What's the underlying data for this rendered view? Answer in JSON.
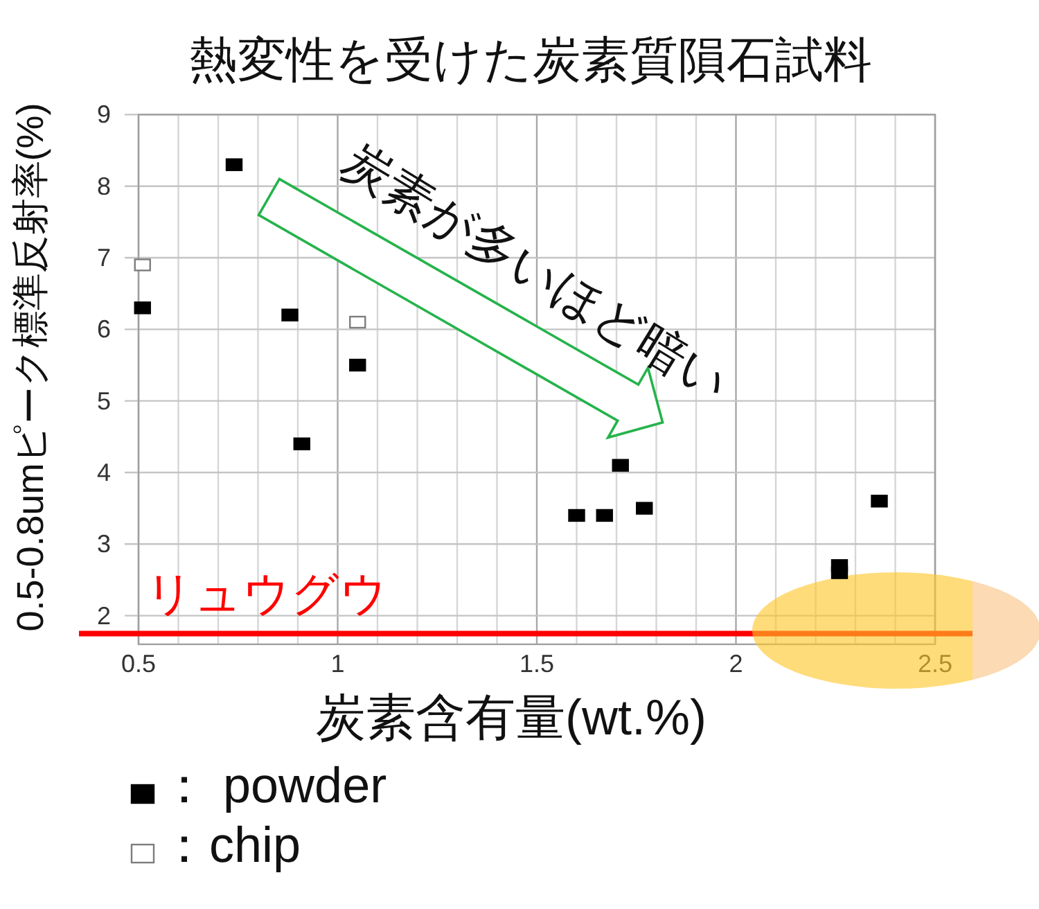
{
  "chart_data": {
    "type": "scatter",
    "title": "熱変性を受けた炭素質隕石試料",
    "xlabel": "炭素含有量(wt.%)",
    "ylabel": "0.5-0.8umピーク標準反射率(%)",
    "series": [
      {
        "name": "： powder",
        "color": "#000000",
        "x": [
          0.51,
          0.74,
          0.88,
          0.91,
          1.05,
          1.6,
          1.67,
          1.71,
          1.77,
          2.26,
          2.26,
          2.36
        ],
        "values": [
          6.3,
          8.3,
          6.2,
          4.4,
          5.5,
          3.4,
          3.4,
          4.1,
          3.5,
          2.7,
          2.6,
          3.6
        ]
      },
      {
        "name": "：chip",
        "color": "#ffffff",
        "x": [
          0.51,
          1.05
        ],
        "values": [
          6.9,
          6.1
        ]
      }
    ],
    "xlim": [
      0.5,
      2.5
    ],
    "xticks": [
      0.5,
      {
        "value": 0.6,
        "label": null
      },
      {
        "value": 0.7,
        "label": null
      },
      {
        "value": 0.8,
        "label": null
      },
      {
        "value": 0.9,
        "label": null
      },
      1,
      {
        "value": 1.1,
        "label": null
      },
      {
        "value": 1.2,
        "label": null
      },
      {
        "value": 1.3,
        "label": null
      },
      {
        "value": 1.4,
        "label": null
      },
      1.5,
      {
        "value": 1.6,
        "label": null
      },
      {
        "value": 1.7,
        "label": null
      },
      {
        "value": 1.8,
        "label": null
      },
      {
        "value": 1.9,
        "label": null
      },
      2,
      {
        "value": 2.1,
        "label": null
      },
      {
        "value": 2.2,
        "label": null
      },
      {
        "value": 2.3,
        "label": null
      },
      {
        "value": 2.4,
        "label": null
      },
      2.5
    ],
    "ylim": [
      1.6,
      9
    ],
    "yticks": [
      2,
      3,
      4,
      5,
      6,
      7,
      8,
      9
    ],
    "grid": true,
    "marker": "square",
    "legend": "bottom left",
    "ref_lines": [
      {
        "axis": "y",
        "value": 1.75,
        "label": "リュウグウ",
        "color": "#ff0000"
      }
    ],
    "annotations": [
      "炭素が多いほど暗い"
    ]
  }
}
